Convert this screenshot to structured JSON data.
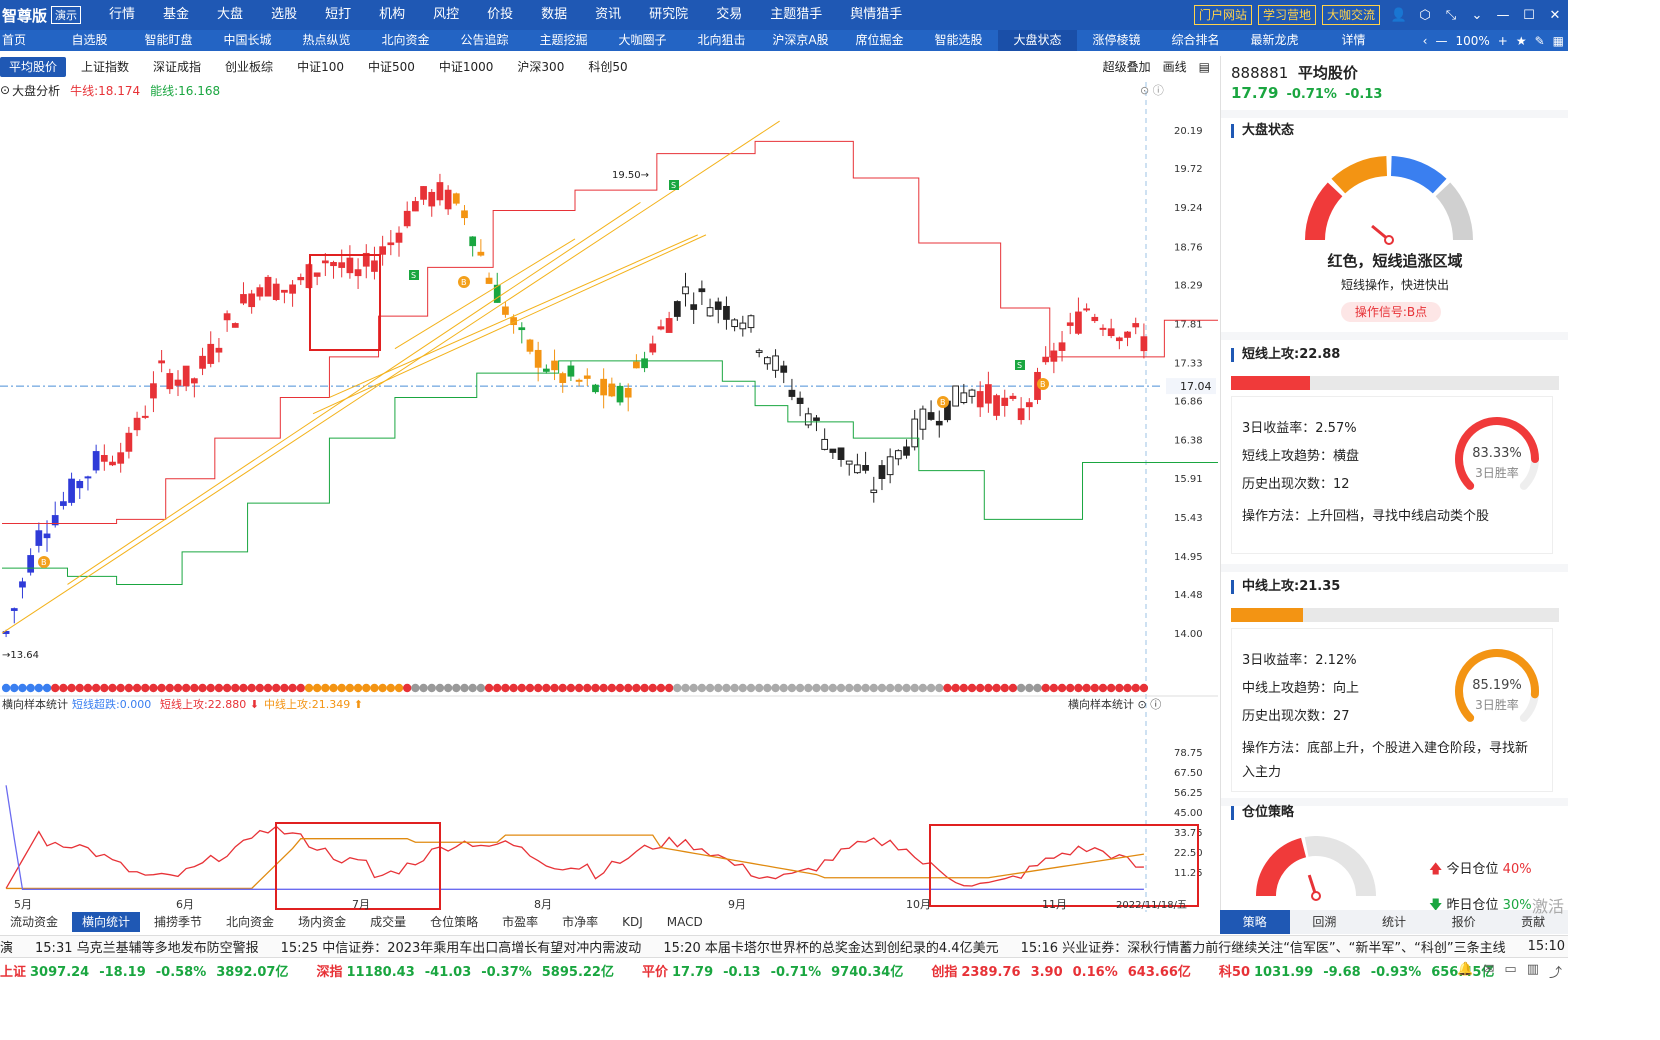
{
  "brand": "智尊版",
  "demo": "演示",
  "menu": [
    {
      "label": "行情",
      "dot": false
    },
    {
      "label": "基金",
      "dot": true
    },
    {
      "label": "大盘",
      "dot": false
    },
    {
      "label": "选股",
      "dot": true
    },
    {
      "label": "短打",
      "dot": true
    },
    {
      "label": "机构",
      "dot": true
    },
    {
      "label": "风控",
      "dot": false
    },
    {
      "label": "价投",
      "dot": false
    },
    {
      "label": "数据",
      "dot": false
    },
    {
      "label": "资讯",
      "dot": false
    },
    {
      "label": "研究院",
      "dot": false
    },
    {
      "label": "交易",
      "dot": true
    },
    {
      "label": "主题猎手",
      "dot": false
    },
    {
      "label": "舆情猎手",
      "dot": true
    }
  ],
  "topright": [
    "门户网站",
    "学习营地",
    "大咖交流"
  ],
  "tabs": [
    "首页",
    "自选股",
    "智能盯盘",
    "中国长城",
    "热点纵览",
    "北向资金",
    "公告追踪",
    "主题挖掘",
    "大咖圈子",
    "北向狙击",
    "沪深京A股",
    "席位掘金",
    "智能选股",
    "大盘状态",
    "涨停棱镜",
    "综合排名",
    "最新龙虎",
    "详情"
  ],
  "active_tab": "大盘状态",
  "zoom": "100%",
  "subtabs": [
    "平均股价",
    "上证指数",
    "深证成指",
    "创业板综",
    "中证100",
    "中证500",
    "中证1000",
    "沪深300",
    "科创50"
  ],
  "sub_right": [
    "超级叠加",
    "画线"
  ],
  "info": {
    "name": "大盘分析",
    "niu": "牛线:18.174",
    "neng": "能线:16.168"
  },
  "lower_info": {
    "name": "横向样本统计",
    "a": "短线超跌:0.000",
    "b": "短线上攻:22.880",
    "c": "中线上攻:21.349",
    "right": "横向样本统计"
  },
  "chart_data": {
    "type": "candlestick",
    "y_ticks": [
      "20.19",
      "19.72",
      "19.24",
      "18.76",
      "18.29",
      "17.81",
      "17.33",
      "16.86",
      "16.38",
      "15.91",
      "15.43",
      "14.95",
      "14.48",
      "14.00"
    ],
    "y_range": [
      13.4,
      20.35
    ],
    "crosshair_value": "17.04",
    "high_label": "19.50",
    "low_label": "13.64",
    "x_labels": [
      "5月",
      "6月",
      "7月",
      "8月",
      "9月",
      "10月",
      "11月"
    ],
    "date_label": "2022/11/18/五",
    "lower_ticks": [
      "78.75",
      "67.50",
      "56.25",
      "45.00",
      "33.75",
      "22.50",
      "11.25"
    ],
    "lower_range": [
      0,
      90
    ]
  },
  "right": {
    "code": "888881",
    "name": "平均股价",
    "price": "17.79",
    "pct": "-0.71%",
    "chg": "-0.13",
    "sec1": "大盘状态",
    "state": "红色，短线追涨区域",
    "state_sub": "短线操作，快进快出",
    "signal": "操作信号:B点",
    "sec2": "短线上攻:22.88",
    "bar2": 0.24,
    "c1": [
      "3日收益率：2.57%",
      "短线上攻趋势：横盘",
      "历史出现次数：12",
      "操作方法：上升回档，寻找中线启动类个股"
    ],
    "r1": {
      "pct": "83.33%",
      "lbl": "3日胜率",
      "val": 0.8333
    },
    "sec3": "中线上攻:21.35",
    "bar3": 0.22,
    "c2": [
      "3日收益率：2.12%",
      "中线上攻趋势：向上",
      "历史出现次数：27",
      "操作方法：底部上升，个股进入建仓阶段，寻找新",
      "入主力"
    ],
    "r2": {
      "pct": "85.19%",
      "lbl": "3日胜率",
      "val": 0.8519
    },
    "sec4": "仓位策略",
    "pos1": "今日仓位",
    "pos1v": "40%",
    "pos2": "昨日仓位",
    "pos2v": "30%"
  },
  "rtabs": [
    "策略",
    "回溯",
    "统计",
    "报价",
    "贡献"
  ],
  "bottabs": [
    "流动资金",
    "横向统计",
    "捕捞季节",
    "北向资金",
    "场内资金",
    "成交量",
    "仓位策略",
    "市盈率",
    "市净率",
    "KDJ",
    "MACD"
  ],
  "news": [
    "演",
    "15:31 乌克兰基辅等多地发布防空警报",
    "15:25 中信证券：2023年乘用车出口高增长有望对冲内需波动",
    "15:20 本届卡塔尔世界杯的总奖金达到创纪录的4.4亿美元",
    "15:16 兴业证券：深秋行情蓄力前行继续关注“信军医”、“新半军”、“科创”三条主线",
    "15:10 !"
  ],
  "ticker": [
    {
      "name": "上证",
      "v": "3097.24",
      "c": "-18.19",
      "p": "-0.58%",
      "a": "3892.07亿",
      "dir": "dn"
    },
    {
      "name": "深指",
      "v": "11180.43",
      "c": "-41.03",
      "p": "-0.37%",
      "a": "5895.22亿",
      "dir": "dn"
    },
    {
      "name": "平价",
      "v": "17.79",
      "c": "-0.13",
      "p": "-0.71%",
      "a": "9740.34亿",
      "dir": "dn"
    },
    {
      "name": "创指",
      "v": "2389.76",
      "c": "3.90",
      "p": "0.16%",
      "a": "643.66亿",
      "dir": "up"
    },
    {
      "name": "科50",
      "v": "1031.99",
      "c": "-9.68",
      "p": "-0.93%",
      "a": "656.45亿",
      "dir": "dn"
    }
  ],
  "watermark": "激活"
}
